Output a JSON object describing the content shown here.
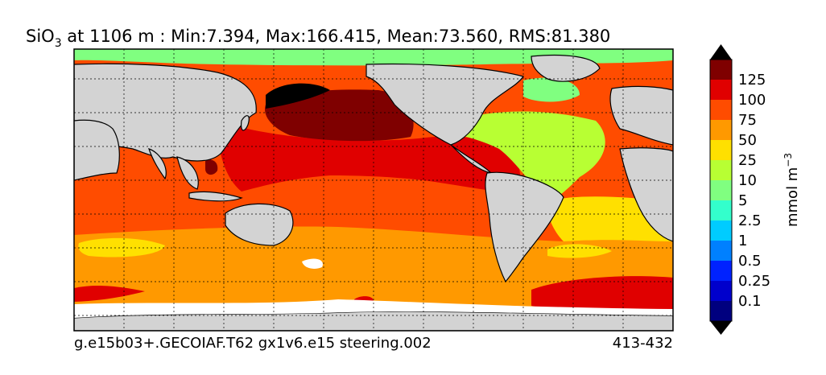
{
  "title": {
    "variable": "SiO",
    "subscript": "3",
    "rest": " at 1106 m : Min:7.394, Max:166.415, Mean:73.560, RMS:81.380"
  },
  "footer": {
    "case_name": "g.e15b03+.GECOIAF.T62 gx1v6.e15 steering.002",
    "years": "413-432"
  },
  "colorbar": {
    "unit": "mmol m",
    "unit_exponent": "−3",
    "levels": [
      {
        "label": "",
        "color": "#00007f"
      },
      {
        "label": "0.1",
        "color": "#0000cc"
      },
      {
        "label": "0.25",
        "color": "#0022ff"
      },
      {
        "label": "0.5",
        "color": "#0080ff"
      },
      {
        "label": "1",
        "color": "#00ccff"
      },
      {
        "label": "2.5",
        "color": "#33ffcc"
      },
      {
        "label": "5",
        "color": "#80ff80"
      },
      {
        "label": "10",
        "color": "#b8ff33"
      },
      {
        "label": "25",
        "color": "#ffe000"
      },
      {
        "label": "50",
        "color": "#ff9900"
      },
      {
        "label": "75",
        "color": "#ff4c00"
      },
      {
        "label": "100",
        "color": "#e00000"
      },
      {
        "label": "125",
        "color": "#7f0000"
      }
    ],
    "over_color": "#000000",
    "under_color": "#000000"
  },
  "map": {
    "land_color": "#d3d3d3",
    "missing_color": "#ffffff"
  }
}
